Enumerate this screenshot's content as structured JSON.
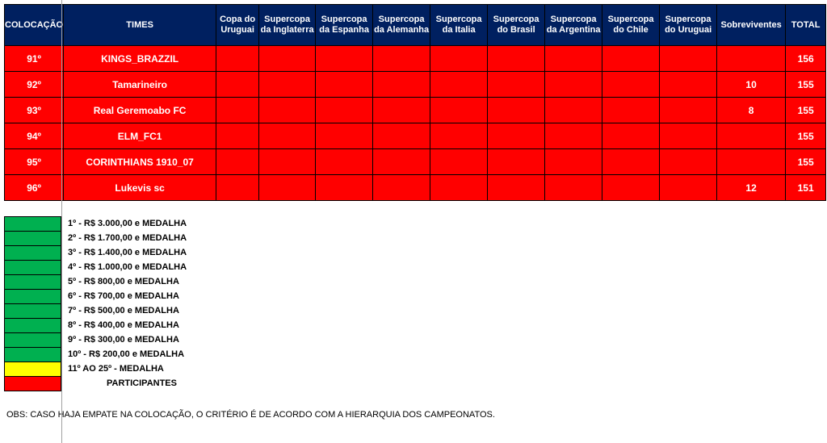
{
  "headers": [
    "COLOCAÇÃO",
    "TIMES",
    "Copa do Uruguai",
    "Supercopa da Inglaterra",
    "Supercopa da Espanha",
    "Supercopa da Alemanha",
    "Supercopa da Italia",
    "Supercopa do Brasil",
    "Supercopa da Argentina",
    "Supercopa do Chile",
    "Supercopa do Uruguai",
    "Sobreviventes",
    "TOTAL"
  ],
  "rows": [
    {
      "pos": "91º",
      "team": "KINGS_BRAZZIL",
      "sobreviventes": "",
      "total": "156"
    },
    {
      "pos": "92º",
      "team": "Tamarineiro",
      "sobreviventes": "10",
      "total": "155"
    },
    {
      "pos": "93º",
      "team": "Real Geremoabo FC",
      "sobreviventes": "8",
      "total": "155"
    },
    {
      "pos": "94º",
      "team": "ELM_FC1",
      "sobreviventes": "",
      "total": "155"
    },
    {
      "pos": "95º",
      "team": "CORINTHIANS 1910_07",
      "sobreviventes": "",
      "total": "155"
    },
    {
      "pos": "96º",
      "team": "Lukevis sc",
      "sobreviventes": "12",
      "total": "151"
    }
  ],
  "legend": [
    {
      "color": "#00b050",
      "label": "1º - R$ 3.000,00 e MEDALHA"
    },
    {
      "color": "#00b050",
      "label": "2º - R$ 1.700,00 e MEDALHA"
    },
    {
      "color": "#00b050",
      "label": "3º - R$ 1.400,00 e MEDALHA"
    },
    {
      "color": "#00b050",
      "label": "4º - R$ 1.000,00 e MEDALHA"
    },
    {
      "color": "#00b050",
      "label": "5º - R$ 800,00 e MEDALHA"
    },
    {
      "color": "#00b050",
      "label": "6º - R$ 700,00 e MEDALHA"
    },
    {
      "color": "#00b050",
      "label": "7º - R$ 500,00 e MEDALHA"
    },
    {
      "color": "#00b050",
      "label": "8º - R$ 400,00 e MEDALHA"
    },
    {
      "color": "#00b050",
      "label": "9º - R$ 300,00 e MEDALHA"
    },
    {
      "color": "#00b050",
      "label": "10º - R$ 200,00 e MEDALHA"
    },
    {
      "color": "#ffff00",
      "label": "11º AO 25º - MEDALHA"
    },
    {
      "color": "#ff0000",
      "label": "PARTICIPANTES"
    }
  ],
  "obs": "OBS: CASO HAJA EMPATE NA COLOCAÇÃO, O CRITÉRIO É DE ACORDO COM A HIERARQUIA DOS CAMPEONATOS."
}
